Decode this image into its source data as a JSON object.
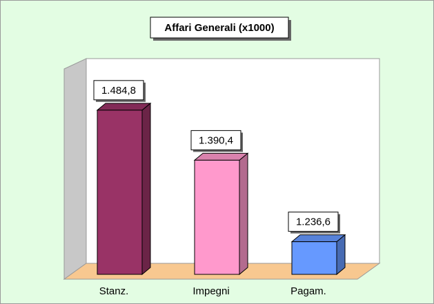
{
  "chart_data": {
    "type": "bar3d",
    "title": "Affari Generali (x1000)",
    "categories": [
      "Stanz.",
      "Impegni",
      "Pagam."
    ],
    "values": [
      1484.8,
      1390.4,
      1236.6
    ],
    "value_labels": [
      "1.484,8",
      "1.390,4",
      "1.236,6"
    ],
    "colors": [
      "#993366",
      "#ff99cc",
      "#6699ff"
    ],
    "ylim": [
      1175,
      1560
    ]
  }
}
